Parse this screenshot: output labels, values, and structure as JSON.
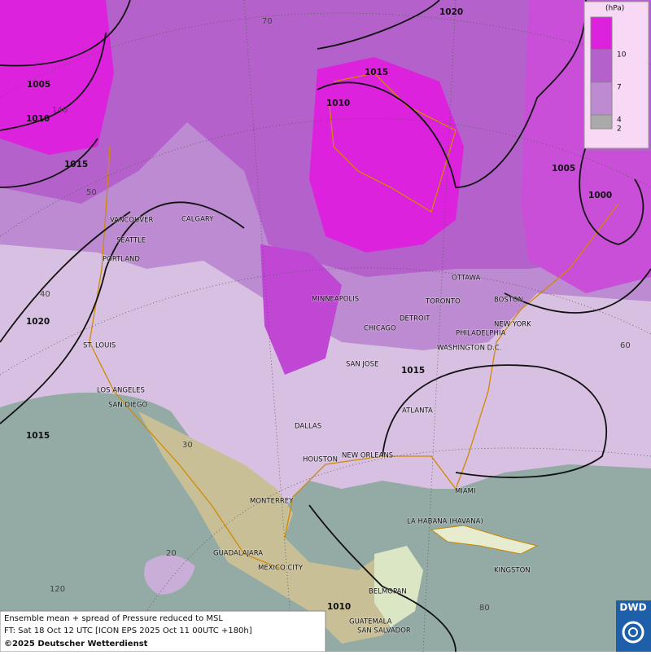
{
  "map": {
    "cities": [
      "VANCOUVER",
      "CALGARY",
      "SEATTLE",
      "PORTLAND",
      "MINNEAPOLIS",
      "OTTAWA",
      "TORONTO",
      "DETROIT",
      "BOSTON",
      "NEW YORK",
      "PHILADELPHIA",
      "CHICAGO",
      "WASHINGTON D.C.",
      "ST. LOUIS",
      "SAN JOSE",
      "LOS ANGELES",
      "SAN DIEGO",
      "DALLAS",
      "ATLANTA",
      "HOUSTON",
      "NEW ORLEANS",
      "MIAMI",
      "MONTERREY",
      "LA HABANA (HAVANA)",
      "GUADALAJARA",
      "MEXICO CITY",
      "KINGSTON",
      "BELMOPAN",
      "GUATEMALA",
      "SAN SALVADOR"
    ],
    "isobar_labels": [
      "1020",
      "1005",
      "1010",
      "1015",
      "1010",
      "1015",
      "1005",
      "1000",
      "1020",
      "1015",
      "1015",
      "1010"
    ],
    "grid_labels": [
      "70",
      "140",
      "50",
      "40",
      "30",
      "20",
      "120",
      "60",
      "80"
    ]
  },
  "legend": {
    "unit": "(hPa)",
    "levels": [
      "10",
      "7",
      "4",
      "2"
    ]
  },
  "footer": {
    "line1": "Ensemble mean + spread of Pressure reduced to MSL",
    "line2": "FT: Sat 18 Oct 12 UTC [ICON EPS 2025 Oct 11 00UTC +180h]",
    "line3": "©2025 Deutscher Wetterdienst"
  },
  "logo": "DWD"
}
